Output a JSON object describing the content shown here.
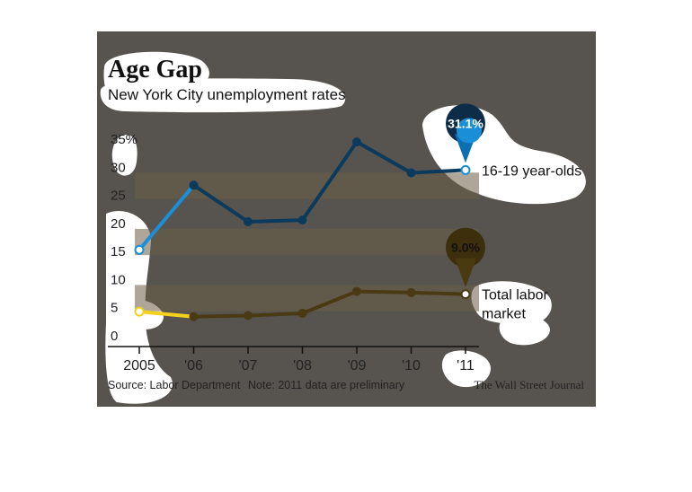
{
  "chart_data": {
    "type": "line",
    "title": "Age Gap",
    "subtitle": "New York City unemployment rates",
    "x": [
      "2005",
      "'06",
      "'07",
      "'08",
      "'09",
      "'10",
      "'11"
    ],
    "yticks": [
      "35%",
      "30",
      "25",
      "20",
      "15",
      "10",
      "5",
      "0"
    ],
    "ylim": [
      0,
      35
    ],
    "series": [
      {
        "name": "16-19 year-olds",
        "values": [
          15.3,
          26.8,
          20.3,
          20.6,
          34.5,
          29.0,
          29.5
        ],
        "callout": "31.1%",
        "color": "#0b3a5c",
        "start_color": "#1a8fd8"
      },
      {
        "name": "Total labor market",
        "name_lines": [
          "Total labor",
          "market"
        ],
        "values": [
          4.3,
          3.4,
          3.6,
          4.0,
          7.9,
          7.7,
          7.4
        ],
        "callout": "9.0%",
        "color": "#4a3a14",
        "start_color": "#f2d21a"
      }
    ],
    "grid": "horizontal-bands",
    "source": "Source: Labor Department",
    "note": "Note: 2011 data are preliminary",
    "credit": "The Wall Street Journal"
  }
}
